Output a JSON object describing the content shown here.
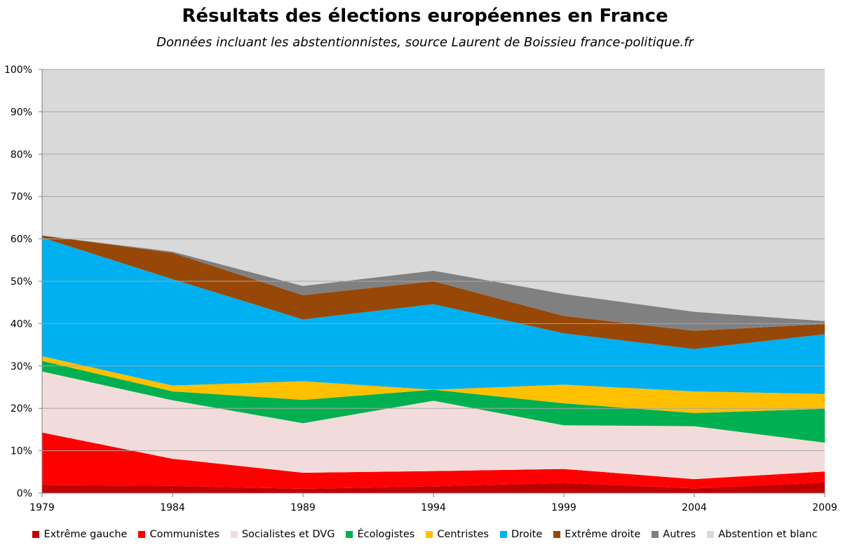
{
  "chart_data": {
    "type": "area",
    "stacked": true,
    "percent": true,
    "title": "Résultats des élections européennes en France",
    "subtitle": "Données incluant les abstentionnistes,  source Laurent de Boissieu france-politique.fr",
    "x": [
      "1979",
      "1984",
      "1989",
      "1994",
      "1999",
      "2004",
      "2009"
    ],
    "y_ticks": [
      "0%",
      "10%",
      "20%",
      "30%",
      "40%",
      "50%",
      "60%",
      "70%",
      "80%",
      "90%",
      "100%"
    ],
    "ylim": [
      0,
      100
    ],
    "grid": true,
    "legend_position": "bottom",
    "series": [
      {
        "name": "Extrême gauche",
        "color": "#C00000",
        "values": [
          1.9,
          1.7,
          1.0,
          1.6,
          2.4,
          1.1,
          2.5
        ]
      },
      {
        "name": "Communistes",
        "color": "#FF0000",
        "values": [
          12.4,
          6.4,
          3.8,
          3.6,
          3.3,
          2.2,
          2.6
        ]
      },
      {
        "name": "Socialistes et DVG",
        "color": "#F2DCDB",
        "values": [
          14.4,
          13.8,
          11.7,
          16.6,
          10.3,
          12.5,
          6.8
        ]
      },
      {
        "name": "Écologistes",
        "color": "#00B050",
        "values": [
          2.5,
          2.1,
          5.5,
          2.6,
          5.2,
          3.1,
          8.0
        ]
      },
      {
        "name": "Centristes",
        "color": "#FFC000",
        "values": [
          1.1,
          1.4,
          4.4,
          0.0,
          4.4,
          5.1,
          3.5
        ]
      },
      {
        "name": "Droite",
        "color": "#00B0F0",
        "values": [
          28.0,
          25.1,
          14.6,
          20.2,
          12.1,
          10.0,
          14.1
        ]
      },
      {
        "name": "Extrême droite",
        "color": "#974706",
        "values": [
          0.5,
          6.2,
          5.7,
          5.4,
          4.1,
          4.3,
          2.4
        ]
      },
      {
        "name": "Autres",
        "color": "#808080",
        "values": [
          0.0,
          0.3,
          2.2,
          2.5,
          5.2,
          4.5,
          0.7
        ]
      },
      {
        "name": "Abstention et blanc",
        "color": "#D9D9D9",
        "values": [
          39.2,
          43.0,
          51.1,
          47.5,
          53.0,
          57.2,
          59.4
        ]
      }
    ]
  }
}
